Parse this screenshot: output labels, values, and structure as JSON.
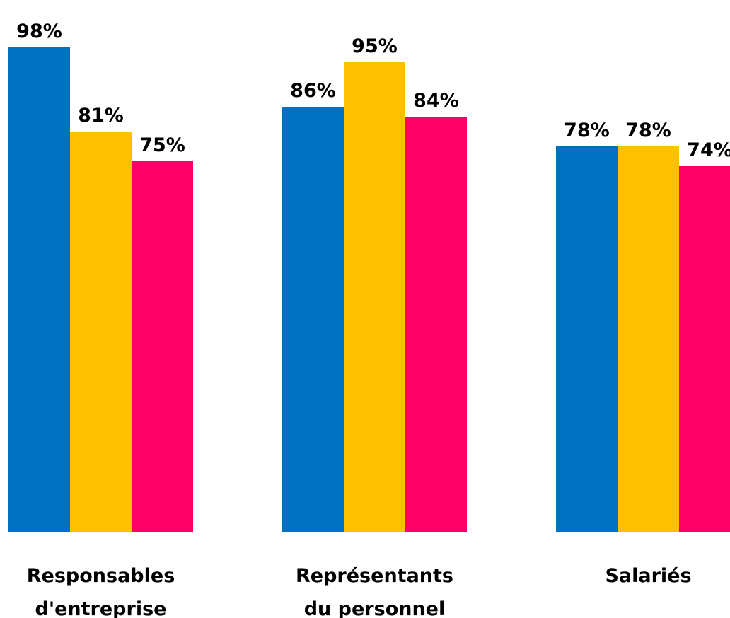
{
  "chart_data": {
    "type": "bar",
    "categories": [
      [
        "Responsables",
        "d'entreprise"
      ],
      [
        "Représentants",
        "du personnel"
      ],
      [
        "Salariés"
      ]
    ],
    "series": [
      {
        "color": "#0070C0",
        "values": [
          98,
          86,
          78
        ]
      },
      {
        "color": "#FFC000",
        "values": [
          81,
          95,
          78
        ]
      },
      {
        "color": "#FF0066",
        "values": [
          75,
          84,
          74
        ]
      }
    ],
    "data_labels": [
      [
        "98%",
        "86%",
        "78%"
      ],
      [
        "81%",
        "95%",
        "78%"
      ],
      [
        "75%",
        "84%",
        "74%"
      ]
    ],
    "value_unit": "%",
    "ylim": [
      0,
      100
    ],
    "grid": false,
    "legend": "none"
  }
}
